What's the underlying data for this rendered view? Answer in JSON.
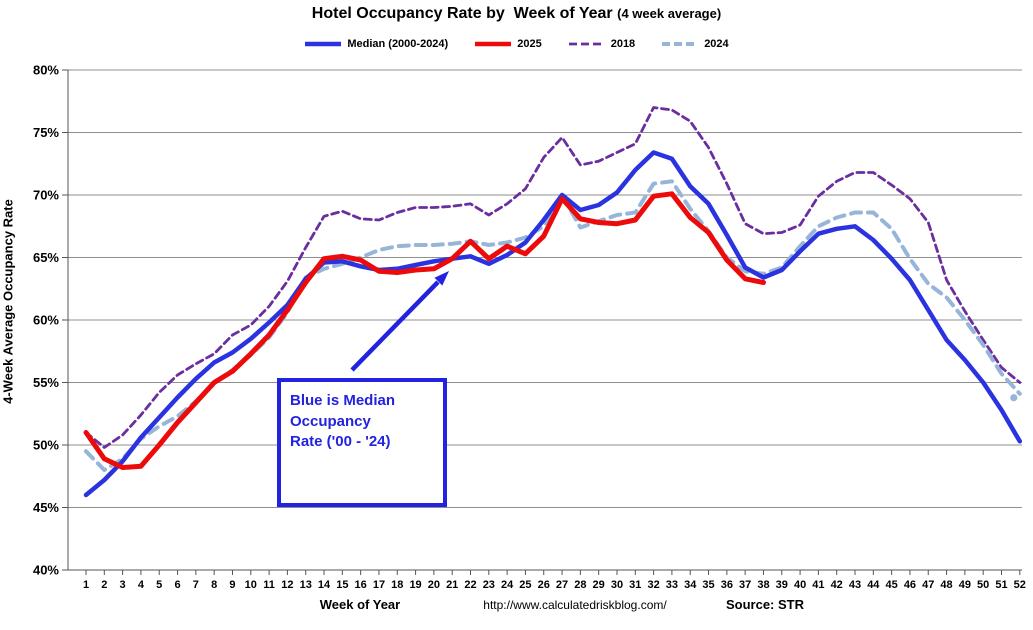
{
  "title": {
    "main": "Hotel Occupancy Rate by  Week of Year ",
    "suffix": "(4 week average)"
  },
  "y_axis": {
    "title": "4-Week Average Occupancy Rate",
    "min": 40,
    "max": 80,
    "step": 5,
    "tick_labels": [
      "80%",
      "75%",
      "70%",
      "65%",
      "60%",
      "55%",
      "50%",
      "45%",
      "40%"
    ]
  },
  "x_axis": {
    "title": "Week of Year",
    "first_week": 1,
    "last_week": 52
  },
  "footer": {
    "url": "http://www.calculatedriskblog.com/",
    "source": "Source: STR"
  },
  "annotation": {
    "lines": [
      "Blue is Median",
      "Occupancy",
      "Rate ('00 - '24)"
    ],
    "color": "#2222e0"
  },
  "chart_data": {
    "type": "line",
    "title": "Hotel Occupancy Rate by Week of Year (4 week average)",
    "xlabel": "Week of Year",
    "ylabel": "4-Week Average Occupancy Rate",
    "ylim": [
      40,
      80
    ],
    "grid": "horizontal",
    "legend_position": "top",
    "x": [
      1,
      2,
      3,
      4,
      5,
      6,
      7,
      8,
      9,
      10,
      11,
      12,
      13,
      14,
      15,
      16,
      17,
      18,
      19,
      20,
      21,
      22,
      23,
      24,
      25,
      26,
      27,
      28,
      29,
      30,
      31,
      32,
      33,
      34,
      35,
      36,
      37,
      38,
      39,
      40,
      41,
      42,
      43,
      44,
      45,
      46,
      47,
      48,
      49,
      50,
      51,
      52
    ],
    "series": [
      {
        "name": "Median (2000-2024)",
        "color": "#2b32df",
        "style": "solid",
        "width": 4.5,
        "zorder": 3,
        "values": [
          46.0,
          47.2,
          48.7,
          50.6,
          52.2,
          53.8,
          55.3,
          56.6,
          57.4,
          58.5,
          59.8,
          61.2,
          63.3,
          64.6,
          64.7,
          64.3,
          64.0,
          64.1,
          64.4,
          64.7,
          64.9,
          65.1,
          64.5,
          65.2,
          66.2,
          68.0,
          70.0,
          68.8,
          69.2,
          70.2,
          72.0,
          73.4,
          72.9,
          70.7,
          69.3,
          66.8,
          64.2,
          63.4,
          64.0,
          65.5,
          66.9,
          67.3,
          67.5,
          66.4,
          64.9,
          63.2,
          60.8,
          58.4,
          56.8,
          55.0,
          52.8,
          50.3
        ]
      },
      {
        "name": "2025",
        "color": "#ec0a0a",
        "style": "solid",
        "width": 5,
        "zorder": 4,
        "values": [
          51.0,
          48.9,
          48.2,
          48.3,
          50.0,
          51.8,
          53.4,
          55.0,
          55.9,
          57.3,
          58.8,
          60.8,
          63.0,
          64.9,
          65.1,
          64.8,
          63.9,
          63.8,
          64.0,
          64.1,
          64.9,
          66.3,
          64.9,
          65.9,
          65.3,
          66.7,
          69.7,
          68.1,
          67.8,
          67.7,
          68.0,
          69.9,
          70.1,
          68.2,
          67.0,
          64.8,
          63.3,
          63.0
        ]
      },
      {
        "name": "2018",
        "color": "#6b2e9e",
        "style": "dashed",
        "width": 2.8,
        "zorder": 1,
        "values": [
          51.0,
          49.8,
          50.8,
          52.4,
          54.2,
          55.6,
          56.5,
          57.3,
          58.8,
          59.6,
          61.1,
          63.1,
          65.8,
          68.3,
          68.7,
          68.1,
          68.0,
          68.6,
          69.0,
          69.0,
          69.1,
          69.3,
          68.4,
          69.3,
          70.5,
          73.0,
          74.6,
          72.4,
          72.7,
          73.4,
          74.1,
          77.0,
          76.8,
          75.9,
          73.8,
          70.9,
          67.7,
          66.9,
          67.0,
          67.6,
          69.9,
          71.1,
          71.8,
          71.8,
          70.8,
          69.7,
          67.8,
          63.2,
          60.7,
          58.4,
          56.2,
          55.0
        ]
      },
      {
        "name": "2024",
        "color": "#96b5d8",
        "style": "dashed-long",
        "width": 4,
        "zorder": 2,
        "end_marker": true,
        "values": [
          49.5,
          48.0,
          48.9,
          50.5,
          51.5,
          52.3,
          53.5,
          55.0,
          56.0,
          57.2,
          58.6,
          60.6,
          63.4,
          64.1,
          64.5,
          65.0,
          65.6,
          65.9,
          66.0,
          66.0,
          66.1,
          66.3,
          66.0,
          66.2,
          66.6,
          67.5,
          70.0,
          67.4,
          67.9,
          68.4,
          68.6,
          70.9,
          71.1,
          68.9,
          67.1,
          65.0,
          63.9,
          63.7,
          64.2,
          65.9,
          67.5,
          68.2,
          68.6,
          68.6,
          67.3,
          64.9,
          62.9,
          61.8,
          60.0,
          58.0,
          55.7,
          54.1
        ]
      }
    ]
  }
}
